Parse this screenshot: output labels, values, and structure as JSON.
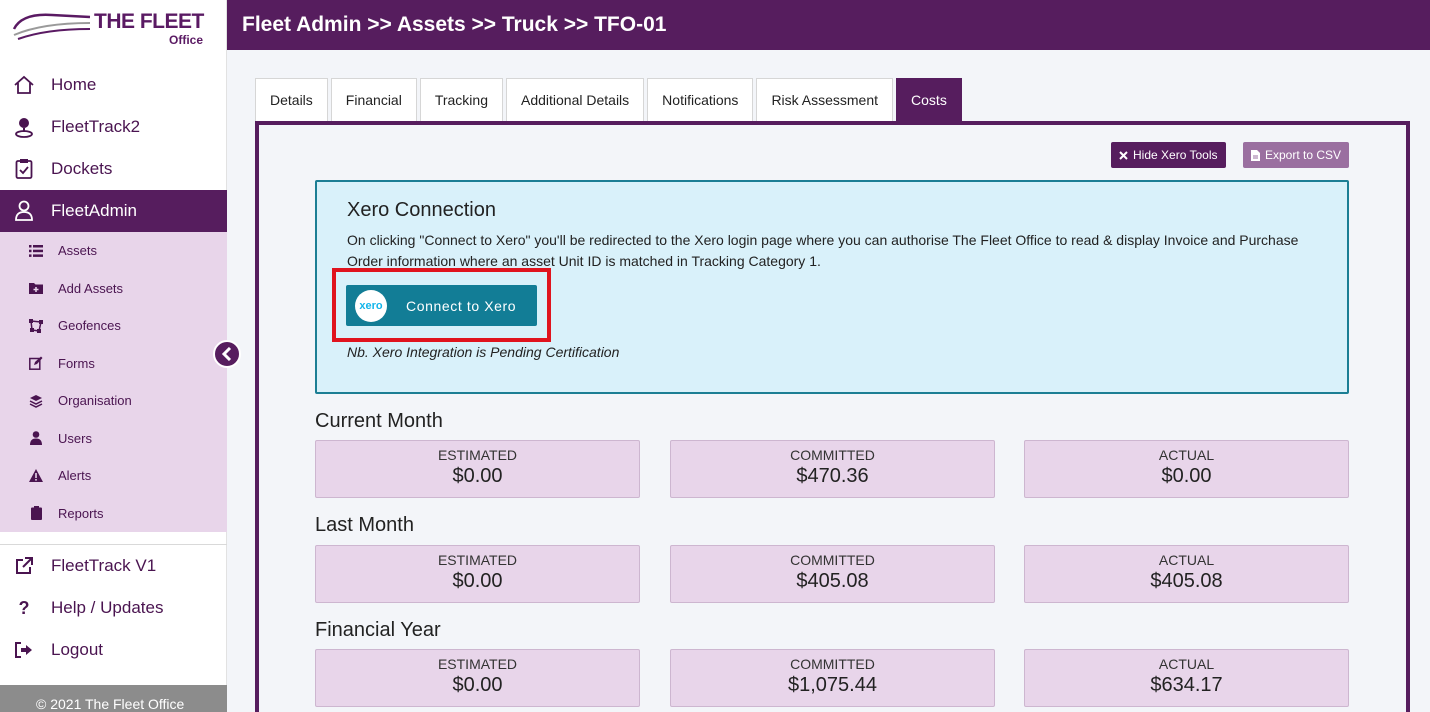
{
  "logo": {
    "title": "THE FLEET",
    "subtitle": "Office"
  },
  "header": {
    "breadcrumb": "Fleet Admin >> Assets >> Truck >> TFO-01"
  },
  "nav": {
    "home": "Home",
    "fleettrack2": "FleetTrack2",
    "dockets": "Dockets",
    "fleetadmin": "FleetAdmin",
    "sub": [
      "Assets",
      "Add Assets",
      "Geofences",
      "Forms",
      "Organisation",
      "Users",
      "Alerts",
      "Reports"
    ],
    "fleettrack_v1": "FleetTrack V1",
    "help": "Help / Updates",
    "logout": "Logout"
  },
  "footer": "© 2021 The Fleet Office",
  "tabs": [
    "Details",
    "Financial",
    "Tracking",
    "Additional Details",
    "Notifications",
    "Risk Assessment",
    "Costs"
  ],
  "active_tab": "Costs",
  "toolbar": {
    "hide_xero": "Hide Xero Tools",
    "export_csv": "Export to CSV"
  },
  "xero": {
    "title": "Xero Connection",
    "description": "On clicking \"Connect to Xero\" you'll be redirected to the Xero login page where you can authorise The Fleet Office to read & display Invoice and Purchase Order information where an asset Unit ID is matched in Tracking Category 1.",
    "logo_text": "xero",
    "button": "Connect to Xero",
    "note": "Nb. Xero Integration is Pending Certification"
  },
  "costs": [
    {
      "title": "Current Month",
      "estimated": "$0.00",
      "committed": "$470.36",
      "actual": "$0.00"
    },
    {
      "title": "Last Month",
      "estimated": "$0.00",
      "committed": "$405.08",
      "actual": "$405.08"
    },
    {
      "title": "Financial Year",
      "estimated": "$0.00",
      "committed": "$1,075.44",
      "actual": "$634.17"
    }
  ],
  "labels": {
    "estimated": "ESTIMATED",
    "committed": "COMMITTED",
    "actual": "ACTUAL"
  },
  "colors": {
    "brand": "#561d5e",
    "sub_bg": "#e8d5ea",
    "xero_blue": "#127d96",
    "highlight": "#e0141e"
  }
}
